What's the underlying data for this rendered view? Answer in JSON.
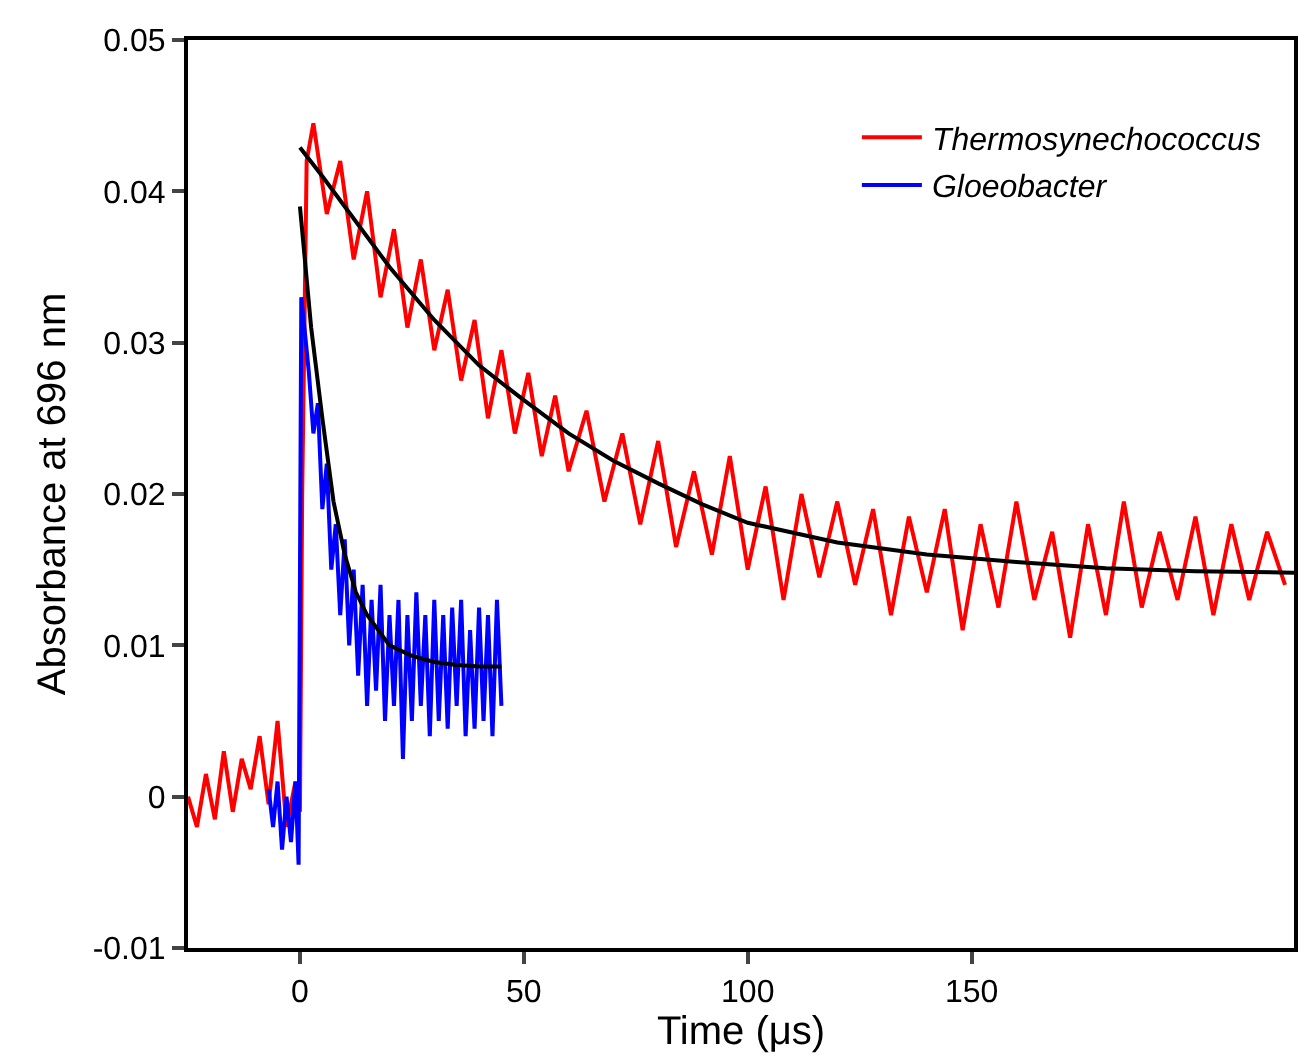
{
  "chart_data": {
    "type": "line",
    "xlabel": "Time (μs)",
    "ylabel": "Absorbance at 696 nm",
    "xlim": [
      -25,
      222
    ],
    "xticks": [
      0,
      50,
      100,
      150
    ],
    "ylim": [
      -0.01,
      0.05
    ],
    "yticks": [
      -0.01,
      0,
      0.01,
      0.02,
      0.03,
      0.04,
      0.05
    ],
    "grid": false,
    "legend": "top right",
    "line_style": "solid",
    "series": [
      {
        "name": "Thermosynechococcus",
        "color": "#ff0000",
        "x": [
          -25,
          -23,
          -21,
          -19,
          -17,
          -15,
          -13,
          -11,
          -9,
          -7,
          -5,
          -3,
          -1,
          0,
          0.5,
          1.5,
          3,
          6,
          9,
          12,
          15,
          18,
          21,
          24,
          27,
          30,
          33,
          36,
          39,
          42,
          45,
          48,
          51,
          54,
          57,
          60,
          64,
          68,
          72,
          76,
          80,
          84,
          88,
          92,
          96,
          100,
          104,
          108,
          112,
          116,
          120,
          124,
          128,
          132,
          136,
          140,
          144,
          148,
          152,
          156,
          160,
          164,
          168,
          172,
          176,
          180,
          184,
          188,
          192,
          196,
          200,
          204,
          208,
          212,
          216,
          220
        ],
        "values": [
          0.0,
          -0.002,
          0.0015,
          -0.0015,
          0.003,
          -0.001,
          0.0025,
          0.0005,
          0.004,
          -0.0005,
          0.005,
          -0.002,
          0.001,
          -0.001,
          0.02,
          0.042,
          0.0445,
          0.0385,
          0.042,
          0.0355,
          0.04,
          0.033,
          0.0375,
          0.031,
          0.0355,
          0.0295,
          0.0335,
          0.0275,
          0.0315,
          0.025,
          0.0295,
          0.024,
          0.028,
          0.0225,
          0.0265,
          0.0215,
          0.0255,
          0.0195,
          0.024,
          0.018,
          0.0235,
          0.0165,
          0.0215,
          0.016,
          0.0225,
          0.015,
          0.0205,
          0.013,
          0.02,
          0.0145,
          0.0195,
          0.014,
          0.019,
          0.012,
          0.0185,
          0.0135,
          0.019,
          0.011,
          0.018,
          0.0125,
          0.0195,
          0.013,
          0.0175,
          0.0105,
          0.018,
          0.012,
          0.0195,
          0.0125,
          0.0175,
          0.013,
          0.0185,
          0.012,
          0.018,
          0.013,
          0.0175,
          0.014
        ]
      },
      {
        "name": "Gloeobacter",
        "color": "#0000ff",
        "x": [
          -7,
          -6,
          -5,
          -4,
          -3,
          -2,
          -1,
          -0.3,
          0.3,
          1,
          2,
          3,
          4,
          5,
          6,
          7,
          8,
          9,
          10,
          11,
          12,
          13,
          14,
          15,
          16,
          17,
          18,
          19,
          20,
          21,
          22,
          23,
          24,
          25,
          26,
          27,
          28,
          29,
          30,
          31,
          32,
          33,
          34,
          35,
          36,
          37,
          38,
          39,
          40,
          41,
          42,
          43,
          44,
          45
        ],
        "values": [
          0.0005,
          -0.002,
          0.001,
          -0.0035,
          0.0,
          -0.003,
          0.001,
          -0.0045,
          0.033,
          0.031,
          0.028,
          0.024,
          0.026,
          0.019,
          0.022,
          0.015,
          0.018,
          0.012,
          0.017,
          0.01,
          0.015,
          0.008,
          0.014,
          0.006,
          0.013,
          0.007,
          0.014,
          0.005,
          0.012,
          0.006,
          0.013,
          0.0025,
          0.012,
          0.005,
          0.0135,
          0.006,
          0.012,
          0.004,
          0.013,
          0.005,
          0.012,
          0.0045,
          0.0125,
          0.006,
          0.013,
          0.004,
          0.011,
          0.0045,
          0.0125,
          0.005,
          0.012,
          0.004,
          0.013,
          0.006
        ]
      },
      {
        "color": "#000000",
        "x": [
          0,
          5,
          10,
          20,
          30,
          40,
          50,
          60,
          70,
          80,
          90,
          100,
          120,
          140,
          160,
          180,
          200,
          222
        ],
        "values": [
          0.0429,
          0.041,
          0.039,
          0.035,
          0.0315,
          0.0285,
          0.0262,
          0.024,
          0.0222,
          0.0207,
          0.0193,
          0.0181,
          0.0168,
          0.016,
          0.0155,
          0.0151,
          0.0149,
          0.0148
        ]
      },
      {
        "color": "#000000",
        "x": [
          0,
          2.5,
          5,
          7.5,
          10,
          12.5,
          15,
          20,
          25,
          30,
          35,
          40,
          45
        ],
        "values": [
          0.039,
          0.031,
          0.025,
          0.0195,
          0.016,
          0.0135,
          0.012,
          0.01,
          0.0093,
          0.0089,
          0.0087,
          0.0086,
          0.0086
        ]
      }
    ]
  }
}
